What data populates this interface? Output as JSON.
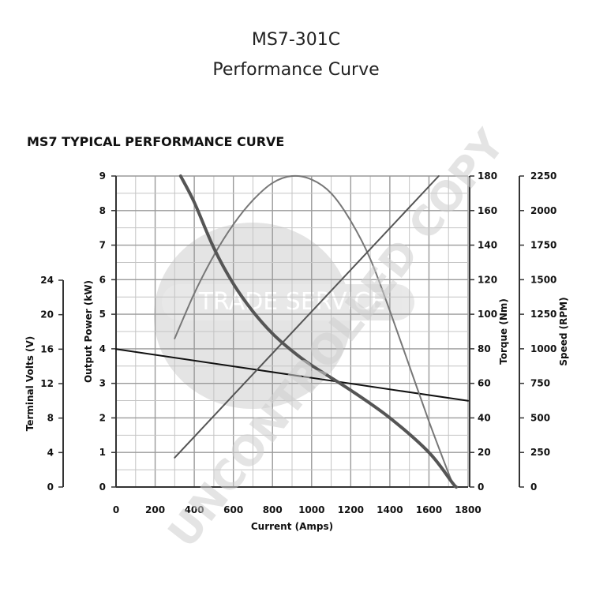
{
  "header": {
    "title_line1": "MS7-301C",
    "title_line2": "Performance Curve",
    "subtitle": "MS7 TYPICAL PERFORMANCE CURVE"
  },
  "watermark": {
    "text": "UNCONTROLLED COPY",
    "logo_text": "TRADE SERVICE"
  },
  "chart_data": {
    "type": "line",
    "title": "MS7 TYPICAL PERFORMANCE CURVE",
    "xlabel": "Current (Amps)",
    "xlim": [
      0,
      1800
    ],
    "x_ticks": [
      "0",
      "200",
      "400",
      "600",
      "800",
      "1000",
      "1200",
      "1400",
      "1600",
      "1800"
    ],
    "grid": true,
    "axes": {
      "volts": {
        "label": "Terminal Volts (V)",
        "lim": [
          0,
          24
        ],
        "ticks": [
          "0",
          "4",
          "8",
          "12",
          "16",
          "20",
          "24"
        ]
      },
      "power": {
        "label": "Output Power (kW)",
        "lim": [
          0,
          9
        ],
        "ticks": [
          "0",
          "1",
          "2",
          "3",
          "4",
          "5",
          "6",
          "7",
          "8",
          "9"
        ]
      },
      "torque": {
        "label": "Torque (Nm)",
        "lim": [
          0,
          180
        ],
        "ticks": [
          "0",
          "20",
          "40",
          "60",
          "80",
          "100",
          "120",
          "140",
          "160",
          "180"
        ]
      },
      "speed": {
        "label": "Speed (RPM)",
        "lim": [
          0,
          2250
        ],
        "ticks": [
          "0",
          "250",
          "500",
          "750",
          "1000",
          "1250",
          "1500",
          "1750",
          "2000",
          "2250"
        ]
      }
    },
    "series": [
      {
        "axis": "volts",
        "color": "#111111",
        "stroke": "thin",
        "points": [
          [
            0,
            16.0
          ],
          [
            1800,
            10.0
          ]
        ]
      },
      {
        "axis": "power",
        "color": "#777777",
        "stroke": "thin",
        "points": [
          [
            300,
            4.3
          ],
          [
            400,
            5.6
          ],
          [
            500,
            6.7
          ],
          [
            600,
            7.6
          ],
          [
            700,
            8.3
          ],
          [
            800,
            8.8
          ],
          [
            900,
            9.0
          ],
          [
            1000,
            8.9
          ],
          [
            1100,
            8.5
          ],
          [
            1200,
            7.7
          ],
          [
            1300,
            6.6
          ],
          [
            1400,
            5.1
          ],
          [
            1500,
            3.5
          ],
          [
            1600,
            1.9
          ],
          [
            1700,
            0.4
          ],
          [
            1730,
            0.0
          ]
        ]
      },
      {
        "axis": "torque",
        "color": "#555555",
        "stroke": "thin",
        "points": [
          [
            300,
            17
          ],
          [
            1650,
            180
          ]
        ]
      },
      {
        "axis": "speed",
        "color": "#555555",
        "stroke": "thick",
        "points": [
          [
            330,
            2250
          ],
          [
            400,
            2060
          ],
          [
            500,
            1730
          ],
          [
            600,
            1470
          ],
          [
            700,
            1270
          ],
          [
            800,
            1110
          ],
          [
            900,
            985
          ],
          [
            1000,
            880
          ],
          [
            1200,
            700
          ],
          [
            1400,
            500
          ],
          [
            1600,
            250
          ],
          [
            1720,
            30
          ],
          [
            1740,
            0
          ]
        ]
      }
    ]
  }
}
